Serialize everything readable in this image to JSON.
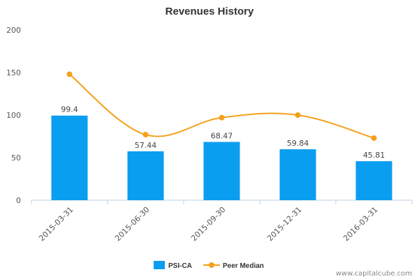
{
  "chart_data": {
    "type": "bar",
    "title": "Revenues History",
    "categories": [
      "2015-03-31",
      "2015-06-30",
      "2015-09-30",
      "2015-12-31",
      "2016-03-31"
    ],
    "series": [
      {
        "name": "PSI-CA",
        "type": "bar",
        "color": "#0a9ef0",
        "values": [
          99.4,
          57.44,
          68.47,
          59.84,
          45.81
        ],
        "labels": [
          "99.4",
          "57.44",
          "68.47",
          "59.84",
          "45.81"
        ]
      },
      {
        "name": "Peer Median",
        "type": "line",
        "color": "#f5a01a",
        "values": [
          148,
          77,
          97,
          100,
          73
        ]
      }
    ],
    "ylim": [
      0,
      200
    ],
    "yticks": [
      0,
      50,
      100,
      150,
      200
    ],
    "grid": false,
    "legend": "bottom-center"
  },
  "watermark": "www.capitalcube.com"
}
